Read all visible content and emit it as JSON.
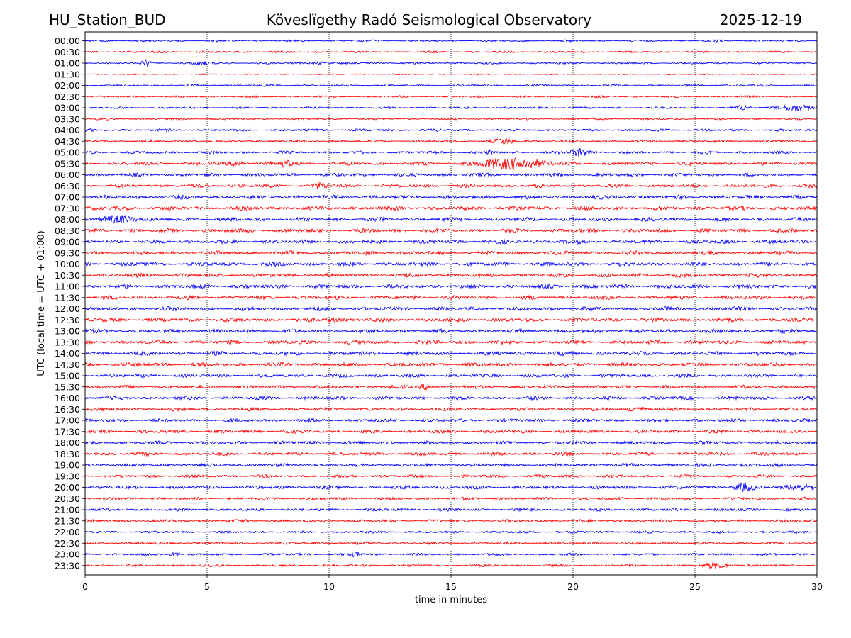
{
  "header": {
    "station": "HU_Station_BUD",
    "observatory": "Köveslïgethy Radó Seismological Observatory",
    "date": "2025-12-19"
  },
  "chart_data": {
    "type": "line",
    "title": "Köveslïgethy Radó Seismological Observatory",
    "xlabel": "time in minutes",
    "ylabel": "UTC (local time = UTC + 01:00)",
    "xlim": [
      0,
      30
    ],
    "xticks": [
      0,
      5,
      10,
      15,
      20,
      25,
      30
    ],
    "grid_x": [
      5,
      10,
      15,
      20,
      25
    ],
    "colors": [
      "#0000ff",
      "#ff0000"
    ],
    "rows": [
      "00:00",
      "00:30",
      "01:00",
      "01:30",
      "02:00",
      "02:30",
      "03:00",
      "03:30",
      "04:00",
      "04:30",
      "05:00",
      "05:30",
      "06:00",
      "06:30",
      "07:00",
      "07:30",
      "08:00",
      "08:30",
      "09:00",
      "09:30",
      "10:00",
      "10:30",
      "11:00",
      "11:30",
      "12:00",
      "12:30",
      "13:00",
      "13:30",
      "14:00",
      "14:30",
      "15:00",
      "15:30",
      "16:00",
      "16:30",
      "17:00",
      "17:30",
      "18:00",
      "18:30",
      "19:00",
      "19:30",
      "20:00",
      "20:30",
      "21:00",
      "21:30",
      "22:00",
      "22:30",
      "23:00",
      "23:30"
    ],
    "noise_level": [
      0.4,
      0.4,
      0.4,
      0.25,
      0.4,
      0.4,
      0.4,
      0.4,
      0.5,
      0.5,
      0.55,
      0.7,
      0.7,
      0.7,
      0.8,
      0.8,
      0.8,
      0.8,
      0.8,
      0.8,
      0.8,
      0.8,
      0.8,
      0.8,
      0.8,
      0.8,
      0.8,
      0.8,
      0.8,
      0.8,
      0.7,
      0.7,
      0.7,
      0.7,
      0.7,
      0.7,
      0.7,
      0.7,
      0.7,
      0.6,
      0.7,
      0.6,
      0.6,
      0.6,
      0.5,
      0.5,
      0.5,
      0.5
    ],
    "events": [
      {
        "row": 2,
        "x": 2.5,
        "amp": 1.6,
        "width": 0.15
      },
      {
        "row": 2,
        "x": 4.8,
        "amp": 0.9,
        "width": 0.3
      },
      {
        "row": 2,
        "x": 9.6,
        "amp": 0.6,
        "width": 0.3
      },
      {
        "row": 6,
        "x": 27.0,
        "amp": 1.0,
        "width": 0.3
      },
      {
        "row": 6,
        "x": 29.0,
        "amp": 1.3,
        "width": 0.6
      },
      {
        "row": 9,
        "x": 17.2,
        "amp": 1.1,
        "width": 0.4
      },
      {
        "row": 10,
        "x": 16.6,
        "amp": 1.2,
        "width": 0.1
      },
      {
        "row": 10,
        "x": 20.3,
        "amp": 1.6,
        "width": 0.4
      },
      {
        "row": 11,
        "x": 8.2,
        "amp": 1.2,
        "width": 0.3
      },
      {
        "row": 11,
        "x": 6.3,
        "amp": 1.0,
        "width": 0.3
      },
      {
        "row": 11,
        "x": 17.5,
        "amp": 2.4,
        "width": 1.2
      },
      {
        "row": 13,
        "x": 9.6,
        "amp": 1.1,
        "width": 0.3
      },
      {
        "row": 16,
        "x": 1.5,
        "amp": 1.5,
        "width": 0.6
      },
      {
        "row": 25,
        "x": 10.1,
        "amp": 1.0,
        "width": 0.2
      },
      {
        "row": 31,
        "x": 13.9,
        "amp": 1.2,
        "width": 0.2
      },
      {
        "row": 33,
        "x": 22.6,
        "amp": 1.1,
        "width": 0.3
      },
      {
        "row": 40,
        "x": 27.0,
        "amp": 1.4,
        "width": 0.4
      },
      {
        "row": 40,
        "x": 29.3,
        "amp": 1.2,
        "width": 0.6
      },
      {
        "row": 46,
        "x": 3.7,
        "amp": 0.9,
        "width": 0.2
      },
      {
        "row": 46,
        "x": 11.1,
        "amp": 0.9,
        "width": 0.2
      },
      {
        "row": 47,
        "x": 25.9,
        "amp": 1.0,
        "width": 0.6
      }
    ]
  }
}
